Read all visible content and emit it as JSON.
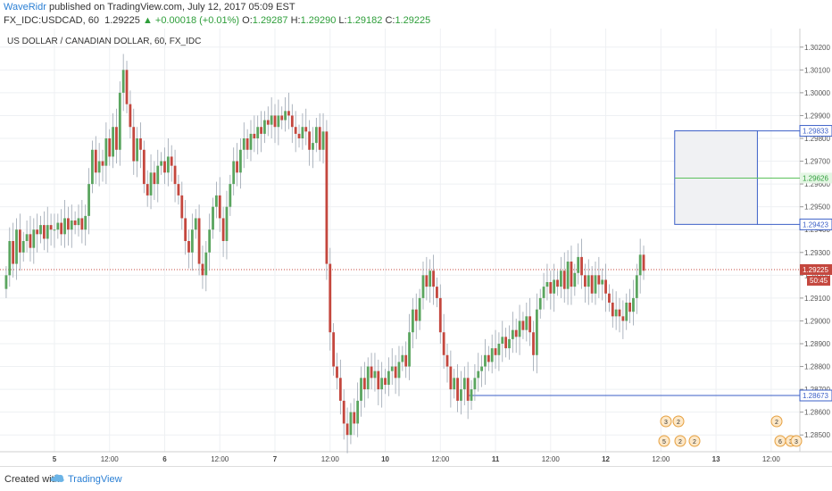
{
  "header": {
    "author": "WaveRidr",
    "published": " published on TradingView.com, July 12, 2017 05:09 EST",
    "symbol": "FX_IDC:USDCAD, 60",
    "last": "1.29225",
    "change": "+0.00018 (+0.01%)",
    "o_label": "O:",
    "o_val": "1.29287",
    "h_label": "H:",
    "h_val": "1.29290",
    "l_label": "L:",
    "l_val": "1.29182",
    "c_label": "C:",
    "c_val": "1.29225"
  },
  "chart_title": "US DOLLAR / CANADIAN DOLLAR, 60, FX_IDC",
  "footer": {
    "created": "Created with",
    "brand": "TradingView"
  },
  "colors": {
    "up": "#5aa55f",
    "down": "#c4473e",
    "box_border": "#3b5fc7",
    "accent": "#2a7fd4"
  },
  "chart_data": {
    "type": "candlestick",
    "title": "US DOLLAR / CANADIAN DOLLAR, 60, FX_IDC",
    "ylim": [
      1.2845,
      1.3025
    ],
    "yticks": [
      "1.28500",
      "1.28600",
      "1.28700",
      "1.28800",
      "1.28900",
      "1.29000",
      "1.29100",
      "1.29200",
      "1.29300",
      "1.29400",
      "1.29500",
      "1.29600",
      "1.29700",
      "1.29800",
      "1.29900",
      "1.30000",
      "1.30100",
      "1.30200"
    ],
    "xticks": [
      {
        "label": "5",
        "bar": 14
      },
      {
        "label": "12:00",
        "bar": 30
      },
      {
        "label": "6",
        "bar": 46
      },
      {
        "label": "12:00",
        "bar": 62
      },
      {
        "label": "7",
        "bar": 78
      },
      {
        "label": "12:00",
        "bar": 94
      },
      {
        "label": "10",
        "bar": 110
      },
      {
        "label": "12:00",
        "bar": 126
      },
      {
        "label": "11",
        "bar": 142
      },
      {
        "label": "12:00",
        "bar": 158
      },
      {
        "label": "12",
        "bar": 174
      },
      {
        "label": "12:00",
        "bar": 190
      },
      {
        "label": "13",
        "bar": 206
      },
      {
        "label": "12:00",
        "bar": 222
      }
    ],
    "closes": [
      1.292,
      1.2935,
      1.2925,
      1.294,
      1.293,
      1.2935,
      1.2938,
      1.2932,
      1.294,
      1.2938,
      1.2942,
      1.2936,
      1.2942,
      1.294,
      1.294,
      1.2943,
      1.2938,
      1.2945,
      1.294,
      1.2944,
      1.2942,
      1.2945,
      1.294,
      1.2946,
      1.296,
      1.2975,
      1.2965,
      1.297,
      1.2968,
      1.298,
      1.2972,
      1.2985,
      1.2975,
      1.3,
      1.301,
      1.2995,
      1.2985,
      1.297,
      1.298,
      1.2975,
      1.296,
      1.2955,
      1.2965,
      1.296,
      1.2968,
      1.297,
      1.2965,
      1.2972,
      1.2968,
      1.296,
      1.2955,
      1.2945,
      1.2935,
      1.293,
      1.294,
      1.2945,
      1.2925,
      1.292,
      1.293,
      1.294,
      1.295,
      1.2955,
      1.2945,
      1.2935,
      1.295,
      1.296,
      1.297,
      1.2965,
      1.2975,
      1.298,
      1.2975,
      1.2982,
      1.298,
      1.2985,
      1.2982,
      1.2988,
      1.2986,
      1.299,
      1.2985,
      1.299,
      1.2988,
      1.2992,
      1.299,
      1.2985,
      1.2982,
      1.298,
      1.2985,
      1.2983,
      1.2975,
      1.2978,
      1.2985,
      1.2975,
      1.2983,
      1.2925,
      1.2895,
      1.288,
      1.2875,
      1.2865,
      1.2855,
      1.285,
      1.286,
      1.2855,
      1.2865,
      1.2875,
      1.287,
      1.288,
      1.2875,
      1.2878,
      1.287,
      1.2875,
      1.2872,
      1.2878,
      1.288,
      1.2875,
      1.2882,
      1.2885,
      1.288,
      1.2895,
      1.2905,
      1.29,
      1.291,
      1.292,
      1.2915,
      1.2922,
      1.2915,
      1.291,
      1.2895,
      1.2885,
      1.288,
      1.287,
      1.2875,
      1.2865,
      1.287,
      1.2875,
      1.2865,
      1.287,
      1.2875,
      1.2878,
      1.288,
      1.2885,
      1.2882,
      1.2888,
      1.2885,
      1.289,
      1.2893,
      1.2888,
      1.2892,
      1.2896,
      1.2893,
      1.29,
      1.2896,
      1.2902,
      1.2895,
      1.2885,
      1.2905,
      1.291,
      1.2915,
      1.2917,
      1.2912,
      1.2918,
      1.2915,
      1.2922,
      1.2914,
      1.2926,
      1.2915,
      1.2921,
      1.2928,
      1.292,
      1.2915,
      1.292,
      1.2912,
      1.292,
      1.2916,
      1.2918,
      1.2912,
      1.2908,
      1.2902,
      1.2905,
      1.2902,
      1.29,
      1.2908,
      1.2904,
      1.291,
      1.292,
      1.2929,
      1.2922
    ],
    "last_price": 1.29225,
    "last_label": "1.29225",
    "countdown": "50:45",
    "position": {
      "top": 1.29833,
      "mid": 1.29626,
      "bottom": 1.29423,
      "top_label": "1.29833",
      "mid_label": "1.29626",
      "bottom_label": "1.29423",
      "start_bar": 194,
      "end_bar": 218
    },
    "hline": {
      "price": 1.28673,
      "label": "1.28673",
      "start_bar": 134
    },
    "event_badges": [
      "3",
      "2",
      "5",
      "2",
      "2",
      "2",
      "6",
      "3",
      "3"
    ]
  }
}
